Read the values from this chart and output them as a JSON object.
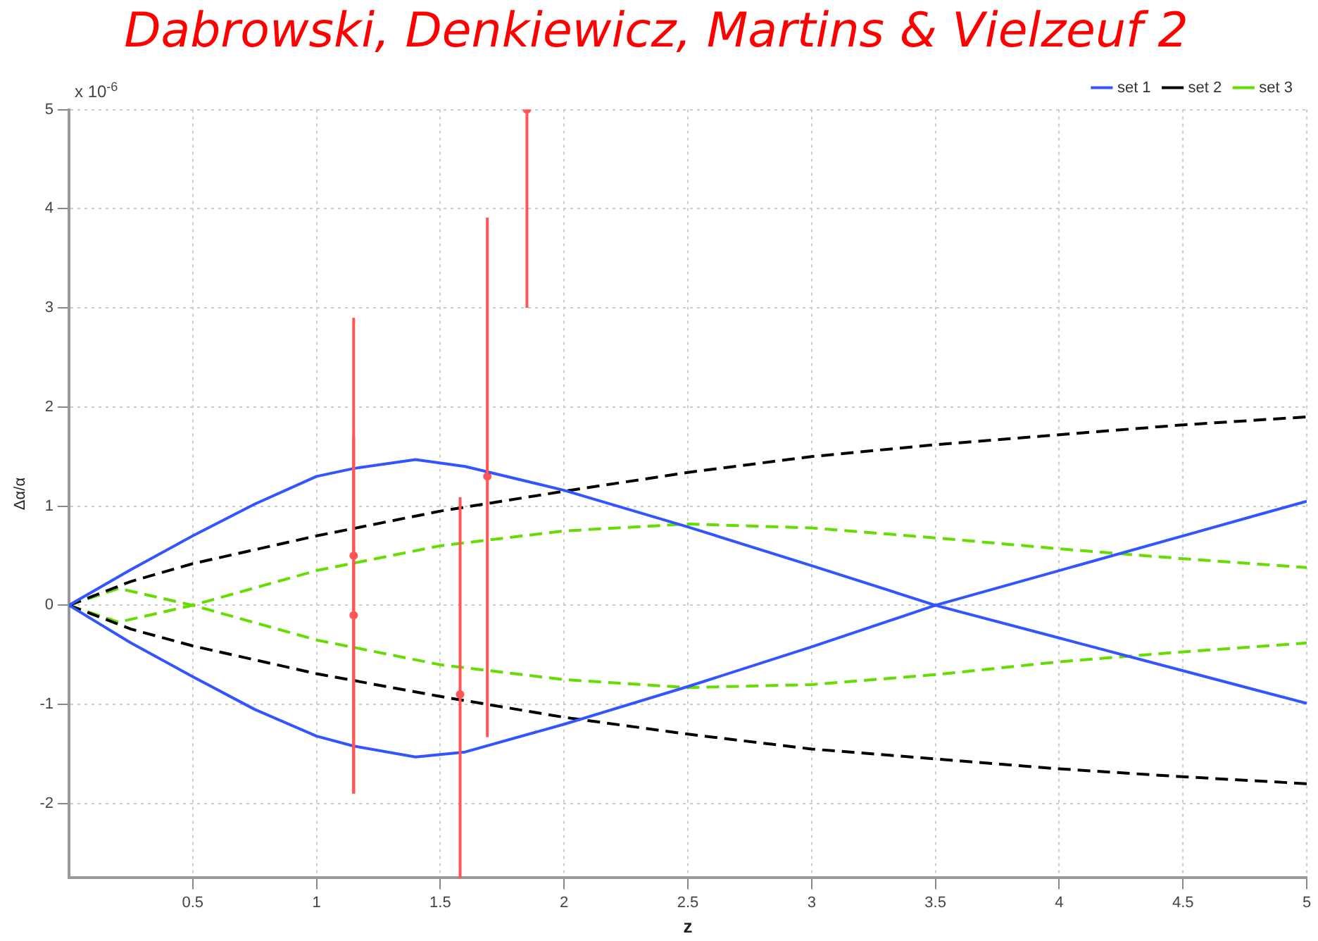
{
  "chart_data": {
    "type": "line",
    "title": "Dabrowski, Denkiewicz, Martins & Vielzeuf 2",
    "xlabel": "z",
    "ylabel": "Δα/α",
    "annotations": [
      "x 10$^{-6}$"
    ],
    "xlim": [
      0,
      5
    ],
    "xticks": [
      0.5,
      1,
      1.5,
      2,
      2.5,
      3,
      3.5,
      4,
      4.5,
      5
    ],
    "ylim": [
      -2.75,
      5
    ],
    "yticks": [
      -2,
      -1,
      0,
      1,
      2,
      3,
      4,
      5
    ],
    "grid": true,
    "legend": "top right",
    "marker": "none",
    "series": [
      {
        "name": "set 1",
        "color": "#3355ff",
        "line_style": "solid",
        "x": [
          0,
          0.25,
          0.5,
          0.75,
          1,
          1.15,
          1.4,
          1.6,
          2,
          2.5,
          3,
          3.5,
          4,
          4.5,
          5
        ],
        "values": [
          0,
          0.36,
          0.7,
          1.02,
          1.3,
          1.38,
          1.47,
          1.4,
          1.16,
          0.79,
          0.4,
          0,
          -0.33,
          -0.66,
          -0.99
        ]
      },
      {
        "color": "#3355ff",
        "line_style": "solid",
        "x": [
          0,
          0.25,
          0.5,
          0.75,
          1,
          1.15,
          1.4,
          1.6,
          2,
          2.5,
          3,
          3.5,
          4,
          4.5,
          5
        ],
        "values": [
          0,
          -0.38,
          -0.72,
          -1.05,
          -1.32,
          -1.42,
          -1.53,
          -1.48,
          -1.2,
          -0.82,
          -0.42,
          0,
          0.35,
          0.7,
          1.05
        ]
      },
      {
        "name": "set 2",
        "color": "#000000",
        "line_style": "dashed",
        "x": [
          0,
          0.25,
          0.5,
          1,
          1.5,
          2,
          2.5,
          3,
          3.5,
          4,
          4.5,
          5
        ],
        "values": [
          0,
          0.24,
          0.42,
          0.7,
          0.95,
          1.15,
          1.34,
          1.5,
          1.62,
          1.72,
          1.82,
          1.9
        ]
      },
      {
        "color": "#000000",
        "line_style": "dashed",
        "x": [
          0,
          0.25,
          0.5,
          1,
          1.5,
          2,
          2.5,
          3,
          3.5,
          4,
          4.5,
          5
        ],
        "values": [
          0,
          -0.24,
          -0.41,
          -0.69,
          -0.92,
          -1.13,
          -1.3,
          -1.45,
          -1.55,
          -1.65,
          -1.73,
          -1.8
        ]
      },
      {
        "name": "set 3",
        "color": "#66dd00",
        "line_style": "dashed",
        "x": [
          0,
          0.2,
          0.5,
          1,
          1.5,
          2,
          2.5,
          3,
          3.5,
          4,
          4.5,
          5
        ],
        "values": [
          0,
          0.17,
          0,
          -0.35,
          -0.6,
          -0.75,
          -0.83,
          -0.8,
          -0.7,
          -0.57,
          -0.47,
          -0.38
        ]
      },
      {
        "color": "#66dd00",
        "line_style": "dashed",
        "x": [
          0,
          0.2,
          0.5,
          1,
          1.5,
          2,
          2.5,
          3,
          3.5,
          4,
          4.5,
          5
        ],
        "values": [
          0,
          -0.17,
          0,
          0.35,
          0.6,
          0.75,
          0.82,
          0.78,
          0.68,
          0.57,
          0.47,
          0.38
        ]
      },
      {
        "type": "scatter",
        "color": "#ff5555",
        "marker": "circle",
        "x": [
          1.15,
          1.15,
          1.58,
          1.69,
          1.85
        ],
        "values": [
          0.5,
          -0.1,
          -0.9,
          1.3,
          5
        ],
        "errors": [
          [
            -1.9,
            2.9
          ],
          [
            -1.9,
            1.7
          ],
          [
            -2.75,
            1.09
          ],
          [
            -1.33,
            3.91
          ],
          [
            3,
            5
          ]
        ]
      }
    ]
  }
}
